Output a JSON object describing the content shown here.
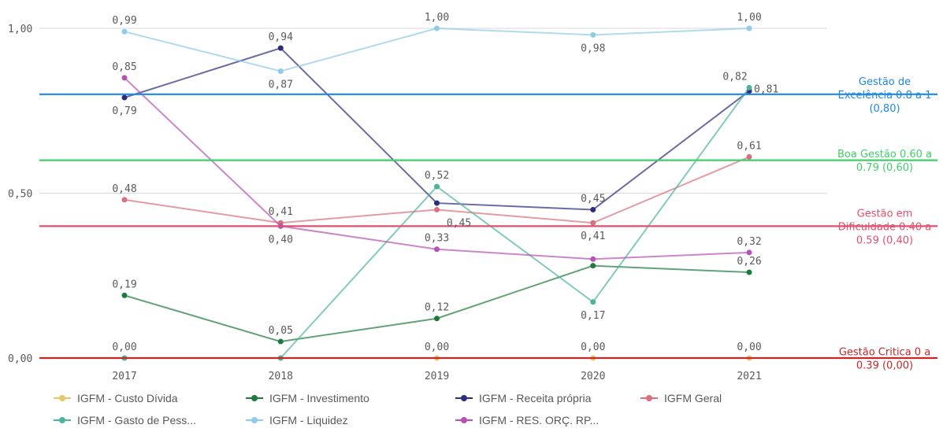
{
  "chart_data": {
    "type": "line",
    "categories": [
      "2017",
      "2018",
      "2019",
      "2020",
      "2021"
    ],
    "ylim": [
      0,
      1
    ],
    "yticks": [
      {
        "value": 0,
        "label": "0,00"
      },
      {
        "value": 0.5,
        "label": "0,50"
      },
      {
        "value": 1,
        "label": "1,00"
      }
    ],
    "grid": true,
    "legend_position": "bottom",
    "series": [
      {
        "name": "IGFM - Custo Dívida",
        "color": "#e3c76a",
        "values": [
          0.0,
          0.0,
          0.0,
          0.0,
          0.0
        ]
      },
      {
        "name": "IGFM - Investimento",
        "color": "#1f7a3e",
        "values": [
          0.19,
          0.05,
          0.12,
          0.28,
          0.26
        ]
      },
      {
        "name": "IGFM - Receita própria",
        "color": "#2c2c7e",
        "values": [
          0.79,
          0.94,
          0.47,
          0.45,
          0.81
        ]
      },
      {
        "name": "IGFM Geral",
        "color": "#d9707f",
        "values": [
          0.48,
          0.41,
          0.45,
          0.41,
          0.61
        ]
      },
      {
        "name": "IGFM - Gasto de Pess...",
        "color": "#4db39c",
        "values": [
          0.0,
          0.0,
          0.52,
          0.17,
          0.82
        ]
      },
      {
        "name": "IGFM - Liquidez",
        "color": "#8fcbea",
        "values": [
          0.99,
          0.87,
          1.0,
          0.98,
          1.0
        ]
      },
      {
        "name": "IGFM - RES. ORÇ. RP...",
        "color": "#b552b3",
        "values": [
          0.85,
          0.4,
          0.33,
          0.3,
          0.32
        ]
      }
    ],
    "data_labels": [
      {
        "text": "0,99",
        "category": 0,
        "value": 0.99,
        "placement": "above"
      },
      {
        "text": "0,85",
        "category": 0,
        "value": 0.85,
        "placement": "above"
      },
      {
        "text": "0,79",
        "category": 0,
        "value": 0.79,
        "placement": "below"
      },
      {
        "text": "0,48",
        "category": 0,
        "value": 0.48,
        "placement": "above"
      },
      {
        "text": "0,19",
        "category": 0,
        "value": 0.19,
        "placement": "above"
      },
      {
        "text": "0,00",
        "category": 0,
        "value": 0.0,
        "placement": "above"
      },
      {
        "text": "0,94",
        "category": 1,
        "value": 0.94,
        "placement": "above"
      },
      {
        "text": "0,87",
        "category": 1,
        "value": 0.87,
        "placement": "below"
      },
      {
        "text": "0,41",
        "category": 1,
        "value": 0.41,
        "placement": "above"
      },
      {
        "text": "0,40",
        "category": 1,
        "value": 0.4,
        "placement": "below"
      },
      {
        "text": "0,05",
        "category": 1,
        "value": 0.05,
        "placement": "above"
      },
      {
        "text": "1,00",
        "category": 2,
        "value": 1.0,
        "placement": "above"
      },
      {
        "text": "0,52",
        "category": 2,
        "value": 0.52,
        "placement": "above"
      },
      {
        "text": "0,45",
        "category": 2,
        "value": 0.45,
        "placement": "below-right"
      },
      {
        "text": "0,33",
        "category": 2,
        "value": 0.33,
        "placement": "above"
      },
      {
        "text": "0,12",
        "category": 2,
        "value": 0.12,
        "placement": "above"
      },
      {
        "text": "0,00",
        "category": 2,
        "value": 0.0,
        "placement": "above"
      },
      {
        "text": "0,98",
        "category": 3,
        "value": 0.98,
        "placement": "below"
      },
      {
        "text": "0,45",
        "category": 3,
        "value": 0.45,
        "placement": "above"
      },
      {
        "text": "0,41",
        "category": 3,
        "value": 0.41,
        "placement": "below"
      },
      {
        "text": "0,17",
        "category": 3,
        "value": 0.17,
        "placement": "below"
      },
      {
        "text": "0,00",
        "category": 3,
        "value": 0.0,
        "placement": "above"
      },
      {
        "text": "1,00",
        "category": 4,
        "value": 1.0,
        "placement": "above"
      },
      {
        "text": "0,82",
        "category": 4,
        "value": 0.82,
        "placement": "above-left"
      },
      {
        "text": "0,81",
        "category": 4,
        "value": 0.81,
        "placement": "right"
      },
      {
        "text": "0,61",
        "category": 4,
        "value": 0.61,
        "placement": "above"
      },
      {
        "text": "0,32",
        "category": 4,
        "value": 0.32,
        "placement": "above"
      },
      {
        "text": "0,26",
        "category": 4,
        "value": 0.26,
        "placement": "above"
      },
      {
        "text": "0,00",
        "category": 4,
        "value": 0.0,
        "placement": "above"
      }
    ],
    "reference_lines": [
      {
        "value": 0.8,
        "color": "#1e88e5",
        "label_lines": [
          "Gestão de",
          "Excelência 0.8 a 1",
          "(0,80)"
        ]
      },
      {
        "value": 0.6,
        "color": "#3ecf6a",
        "label_lines": [
          "Boa Gestão 0.60 a",
          "0.79 (0,60)"
        ]
      },
      {
        "value": 0.4,
        "color": "#e0506e",
        "label_lines": [
          "Gestão em",
          "Dificuldade 0.40 a",
          "0.59 (0,40)"
        ]
      },
      {
        "value": 0.0,
        "color": "#c62828",
        "label_lines": [
          "Gestão Critica 0 a",
          "0.39 (0,00)"
        ]
      }
    ]
  }
}
